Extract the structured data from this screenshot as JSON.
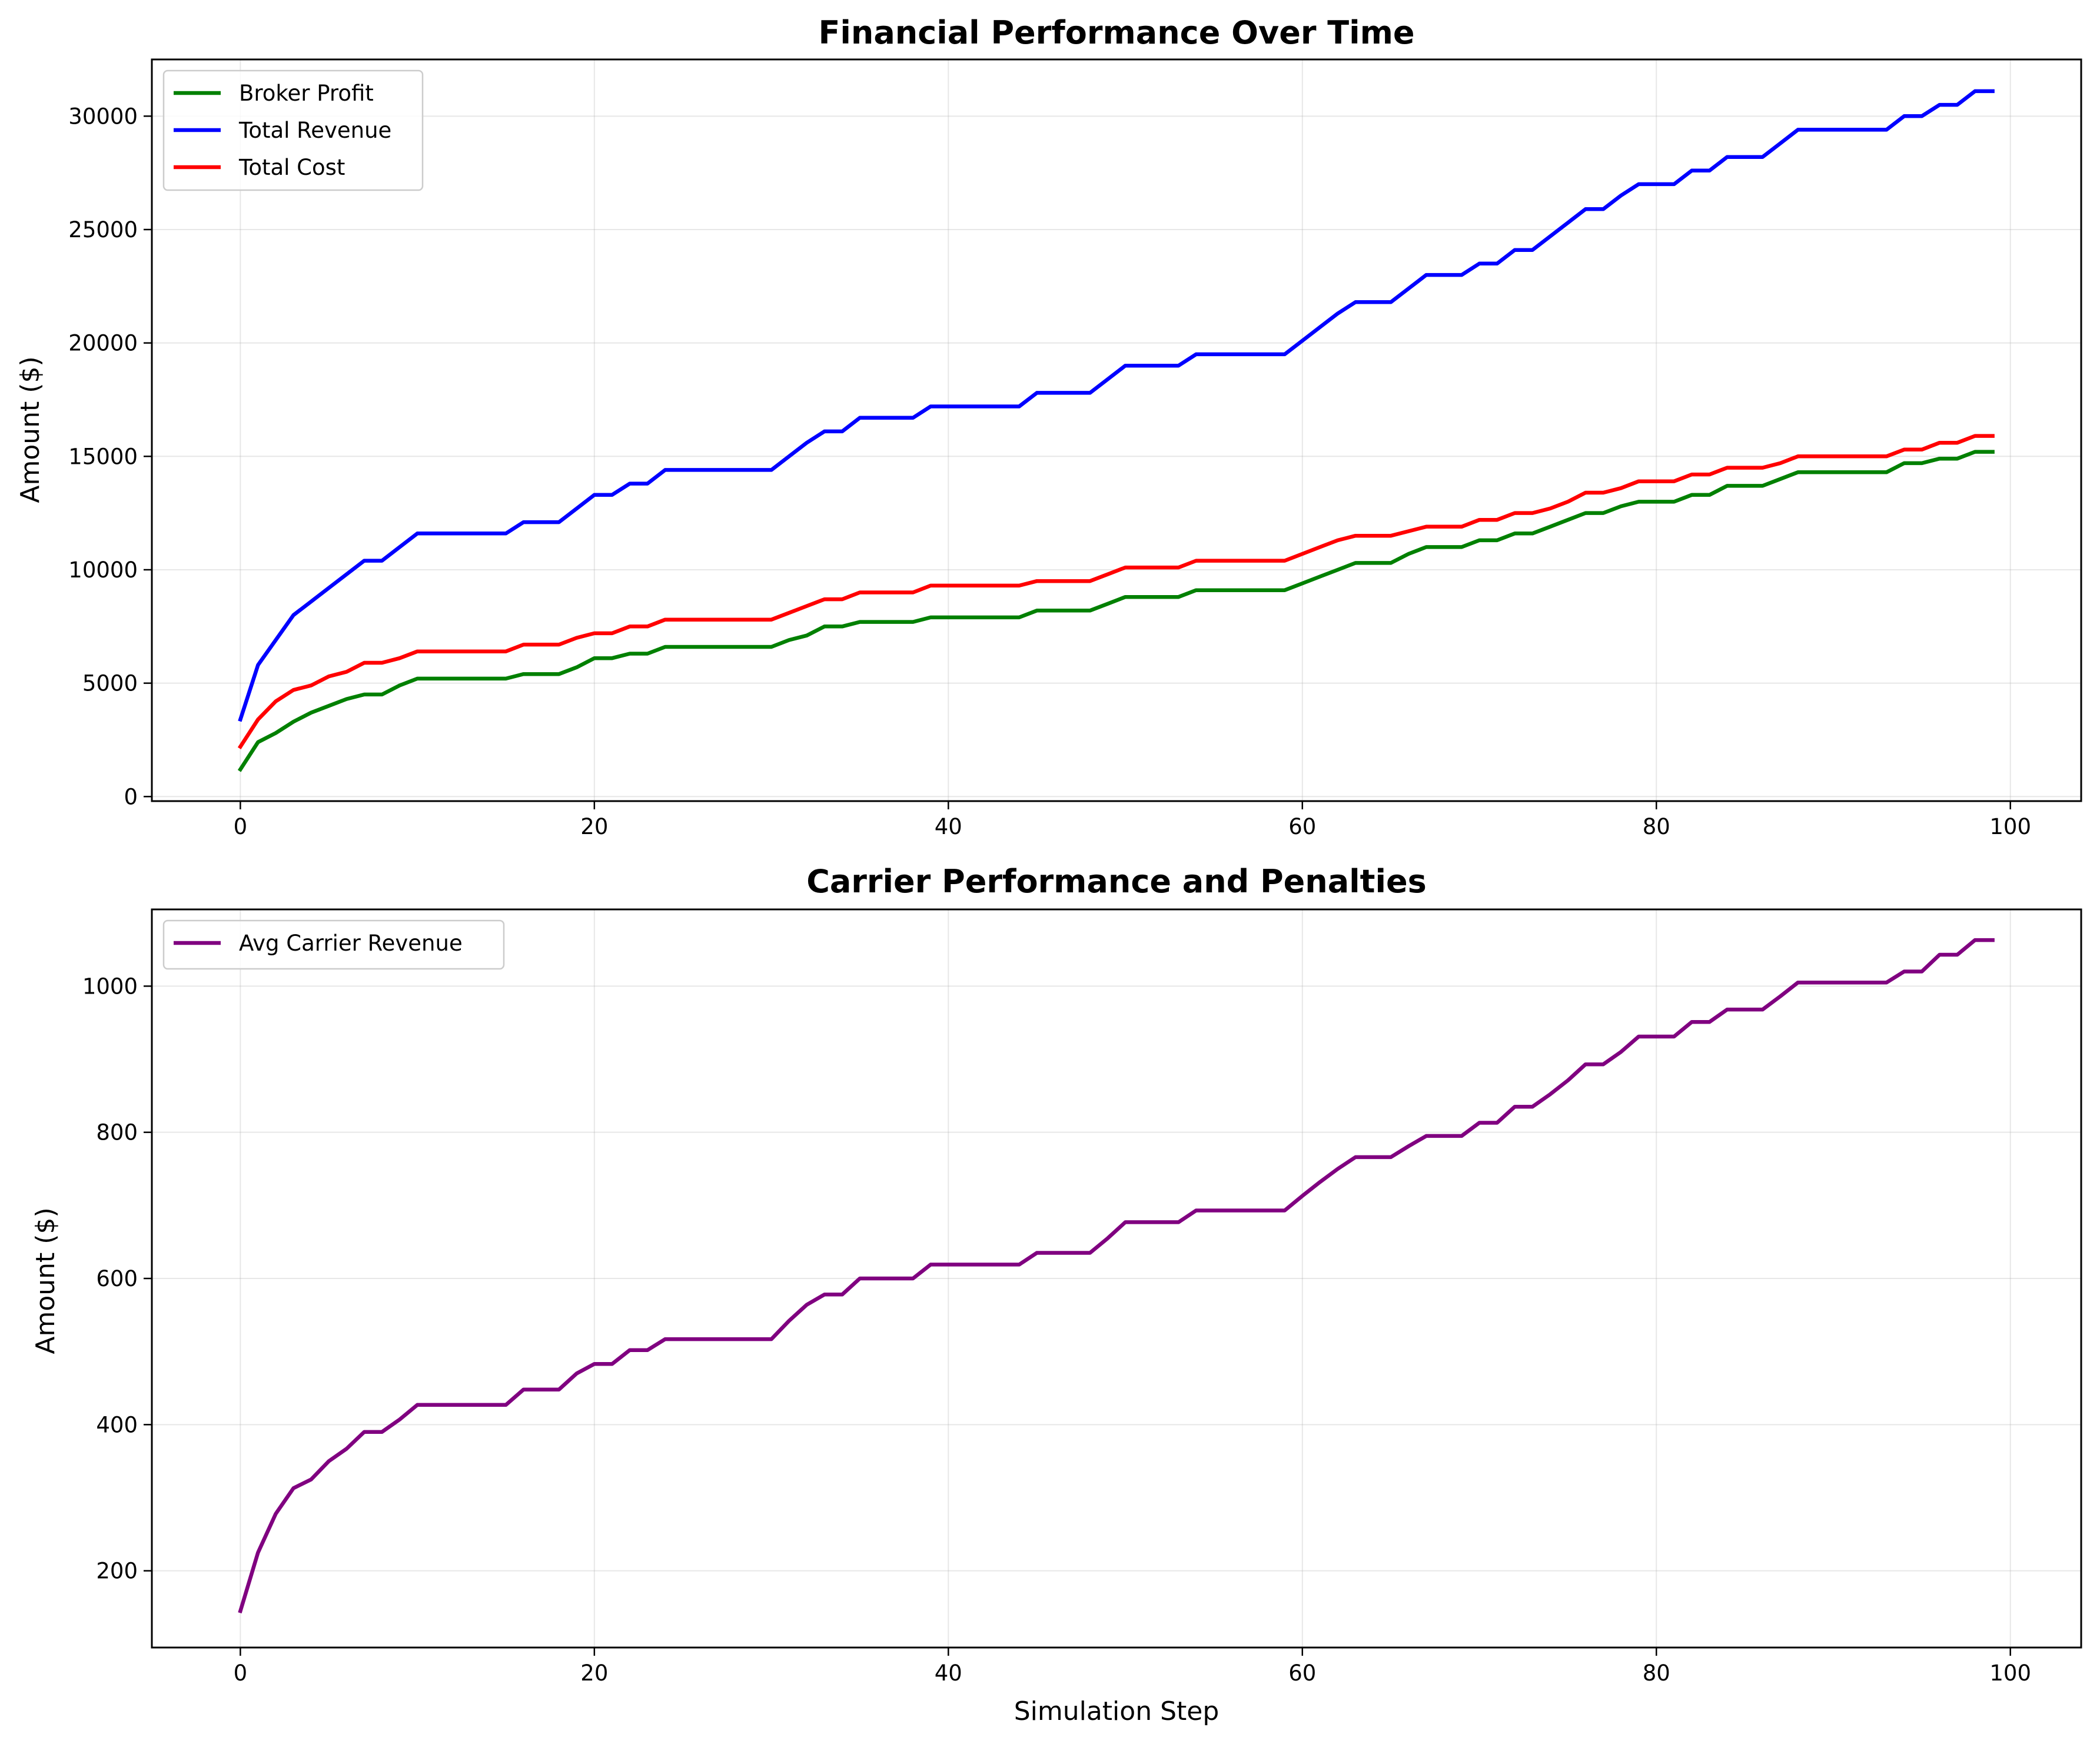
{
  "chart_data": [
    {
      "type": "line",
      "title": "Financial Performance Over Time",
      "xlabel": "",
      "ylabel": "Amount ($)",
      "xlim": [
        -5,
        104
      ],
      "ylim": [
        -200,
        32500
      ],
      "xticks": [
        0,
        20,
        40,
        60,
        80,
        100
      ],
      "yticks": [
        0,
        5000,
        10000,
        15000,
        20000,
        25000,
        30000
      ],
      "grid": true,
      "legend_position": "upper-left",
      "x": [
        0,
        1,
        2,
        3,
        4,
        5,
        6,
        7,
        8,
        9,
        10,
        11,
        12,
        13,
        14,
        15,
        16,
        17,
        18,
        19,
        20,
        21,
        22,
        23,
        24,
        25,
        26,
        27,
        28,
        29,
        30,
        31,
        32,
        33,
        34,
        35,
        36,
        37,
        38,
        39,
        40,
        41,
        42,
        43,
        44,
        45,
        46,
        47,
        48,
        49,
        50,
        51,
        52,
        53,
        54,
        55,
        56,
        57,
        58,
        59,
        60,
        61,
        62,
        63,
        64,
        65,
        66,
        67,
        68,
        69,
        70,
        71,
        72,
        73,
        74,
        75,
        76,
        77,
        78,
        79,
        80,
        81,
        82,
        83,
        84,
        85,
        86,
        87,
        88,
        89,
        90,
        91,
        92,
        93,
        94,
        95,
        96,
        97,
        98,
        99
      ],
      "series": [
        {
          "name": "Broker Profit",
          "color": "#008000",
          "values": [
            1200,
            2400,
            2800,
            3300,
            3700,
            4000,
            4300,
            4500,
            4500,
            4900,
            5200,
            5200,
            5200,
            5200,
            5200,
            5200,
            5400,
            5400,
            5400,
            5700,
            6100,
            6100,
            6300,
            6300,
            6600,
            6600,
            6600,
            6600,
            6600,
            6600,
            6600,
            6900,
            7100,
            7500,
            7500,
            7700,
            7700,
            7700,
            7700,
            7900,
            7900,
            7900,
            7900,
            7900,
            7900,
            8200,
            8200,
            8200,
            8200,
            8500,
            8800,
            8800,
            8800,
            8800,
            9100,
            9100,
            9100,
            9100,
            9100,
            9100,
            9400,
            9700,
            10000,
            10300,
            10300,
            10300,
            10700,
            11000,
            11000,
            11000,
            11300,
            11300,
            11600,
            11600,
            11900,
            12200,
            12500,
            12500,
            12800,
            13000,
            13000,
            13000,
            13300,
            13300,
            13700,
            13700,
            13700,
            14000,
            14300,
            14300,
            14300,
            14300,
            14300,
            14300,
            14700,
            14700,
            14900,
            14900,
            15200,
            15200
          ]
        },
        {
          "name": "Total Revenue",
          "color": "#0000ff",
          "values": [
            3400,
            5800,
            6900,
            8000,
            8600,
            9200,
            9800,
            10400,
            10400,
            11000,
            11600,
            11600,
            11600,
            11600,
            11600,
            11600,
            12100,
            12100,
            12100,
            12700,
            13300,
            13300,
            13800,
            13800,
            14400,
            14400,
            14400,
            14400,
            14400,
            14400,
            14400,
            15000,
            15600,
            16100,
            16100,
            16700,
            16700,
            16700,
            16700,
            17200,
            17200,
            17200,
            17200,
            17200,
            17200,
            17800,
            17800,
            17800,
            17800,
            18400,
            19000,
            19000,
            19000,
            19000,
            19500,
            19500,
            19500,
            19500,
            19500,
            19500,
            20100,
            20700,
            21300,
            21800,
            21800,
            21800,
            22400,
            23000,
            23000,
            23000,
            23500,
            23500,
            24100,
            24100,
            24700,
            25300,
            25900,
            25900,
            26500,
            27000,
            27000,
            27000,
            27600,
            27600,
            28200,
            28200,
            28200,
            28800,
            29400,
            29400,
            29400,
            29400,
            29400,
            29400,
            30000,
            30000,
            30500,
            30500,
            31100,
            31100
          ]
        },
        {
          "name": "Total Cost",
          "color": "#ff0000",
          "values": [
            2200,
            3400,
            4200,
            4700,
            4900,
            5300,
            5500,
            5900,
            5900,
            6100,
            6400,
            6400,
            6400,
            6400,
            6400,
            6400,
            6700,
            6700,
            6700,
            7000,
            7200,
            7200,
            7500,
            7500,
            7800,
            7800,
            7800,
            7800,
            7800,
            7800,
            7800,
            8100,
            8400,
            8700,
            8700,
            9000,
            9000,
            9000,
            9000,
            9300,
            9300,
            9300,
            9300,
            9300,
            9300,
            9500,
            9500,
            9500,
            9500,
            9800,
            10100,
            10100,
            10100,
            10100,
            10400,
            10400,
            10400,
            10400,
            10400,
            10400,
            10700,
            11000,
            11300,
            11500,
            11500,
            11500,
            11700,
            11900,
            11900,
            11900,
            12200,
            12200,
            12500,
            12500,
            12700,
            13000,
            13400,
            13400,
            13600,
            13900,
            13900,
            13900,
            14200,
            14200,
            14500,
            14500,
            14500,
            14700,
            15000,
            15000,
            15000,
            15000,
            15000,
            15000,
            15300,
            15300,
            15600,
            15600,
            15900,
            15900
          ]
        }
      ]
    },
    {
      "type": "line",
      "title": "Carrier Performance and Penalties",
      "xlabel": "Simulation Step",
      "ylabel": "Amount ($)",
      "xlim": [
        -5,
        104
      ],
      "ylim": [
        95,
        1105
      ],
      "xticks": [
        0,
        20,
        40,
        60,
        80,
        100
      ],
      "yticks": [
        200,
        400,
        600,
        800,
        1000
      ],
      "grid": true,
      "legend_position": "upper-left",
      "x": [
        0,
        1,
        2,
        3,
        4,
        5,
        6,
        7,
        8,
        9,
        10,
        11,
        12,
        13,
        14,
        15,
        16,
        17,
        18,
        19,
        20,
        21,
        22,
        23,
        24,
        25,
        26,
        27,
        28,
        29,
        30,
        31,
        32,
        33,
        34,
        35,
        36,
        37,
        38,
        39,
        40,
        41,
        42,
        43,
        44,
        45,
        46,
        47,
        48,
        49,
        50,
        51,
        52,
        53,
        54,
        55,
        56,
        57,
        58,
        59,
        60,
        61,
        62,
        63,
        64,
        65,
        66,
        67,
        68,
        69,
        70,
        71,
        72,
        73,
        74,
        75,
        76,
        77,
        78,
        79,
        80,
        81,
        82,
        83,
        84,
        85,
        86,
        87,
        88,
        89,
        90,
        91,
        92,
        93,
        94,
        95,
        96,
        97,
        98,
        99
      ],
      "series": [
        {
          "name": "Avg Carrier Revenue",
          "color": "#800080",
          "values": [
            145,
            225,
            278,
            313,
            325,
            350,
            367,
            390,
            390,
            407,
            427,
            427,
            427,
            427,
            427,
            427,
            448,
            448,
            448,
            470,
            483,
            483,
            502,
            502,
            517,
            517,
            517,
            517,
            517,
            517,
            517,
            542,
            564,
            578,
            578,
            600,
            600,
            600,
            600,
            619,
            619,
            619,
            619,
            619,
            619,
            635,
            635,
            635,
            635,
            655,
            677,
            677,
            677,
            677,
            693,
            693,
            693,
            693,
            693,
            693,
            713,
            732,
            750,
            766,
            766,
            766,
            781,
            795,
            795,
            795,
            813,
            813,
            835,
            835,
            852,
            871,
            893,
            893,
            910,
            931,
            931,
            931,
            951,
            951,
            968,
            968,
            968,
            986,
            1005,
            1005,
            1005,
            1005,
            1005,
            1005,
            1020,
            1020,
            1043,
            1043,
            1063,
            1063
          ]
        }
      ]
    }
  ]
}
